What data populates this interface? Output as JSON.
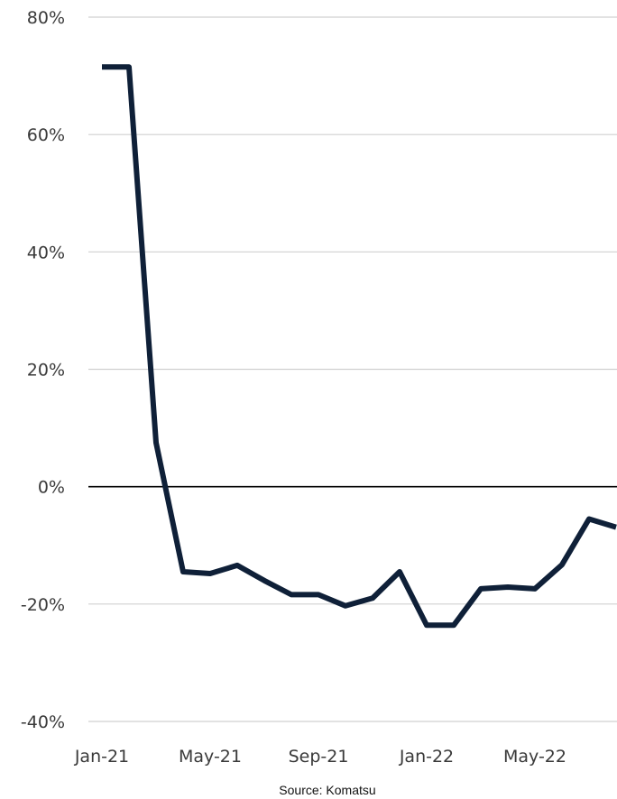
{
  "chart_data": {
    "type": "line",
    "title": "",
    "xlabel": "",
    "ylabel": "",
    "ylim": [
      -40,
      80
    ],
    "yticks": [
      {
        "value": 80,
        "label": "80%"
      },
      {
        "value": 60,
        "label": "60%"
      },
      {
        "value": 40,
        "label": "40%"
      },
      {
        "value": 20,
        "label": "20%"
      },
      {
        "value": 0,
        "label": "0%"
      },
      {
        "value": -20,
        "label": "-20%"
      },
      {
        "value": -40,
        "label": "-40%"
      }
    ],
    "xticks": [
      "Jan-21",
      "May-21",
      "Sep-21",
      "Jan-22",
      "May-22"
    ],
    "grid": true,
    "x": [
      "Jan-21",
      "Feb-21",
      "Mar-21",
      "Apr-21",
      "May-21",
      "Jun-21",
      "Jul-21",
      "Aug-21",
      "Sep-21",
      "Oct-21",
      "Nov-21",
      "Dec-21",
      "Jan-22",
      "Feb-22",
      "Mar-22",
      "Apr-22",
      "May-22",
      "Jun-22",
      "Jul-22",
      "Aug-22"
    ],
    "series": [
      {
        "name": "",
        "color": "#0f2038",
        "values": [
          71.5,
          71.5,
          7.5,
          -14.5,
          -14.8,
          -13.4,
          -16.0,
          -18.4,
          -18.4,
          -20.3,
          -19.0,
          -14.5,
          -23.6,
          -23.6,
          -17.4,
          -17.1,
          -17.4,
          -13.3,
          -5.5,
          -6.9
        ]
      }
    ],
    "source": "Source: Komatsu"
  }
}
